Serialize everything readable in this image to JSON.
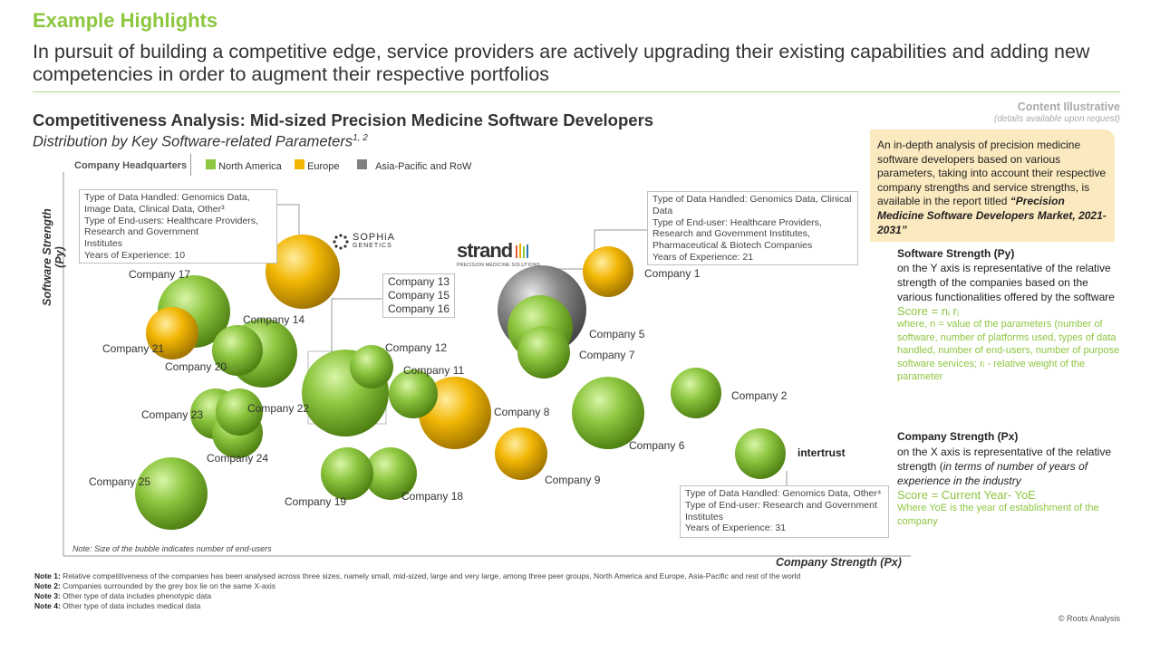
{
  "header": {
    "title": "Example Highlights",
    "headline": "In pursuit of building a competitive edge, service providers are actively upgrading their existing capabilities and adding new competencies in order to augment their respective portfolios"
  },
  "content_illustrative": {
    "label": "Content Illustrative",
    "sub": "(details available upon request)"
  },
  "callout": {
    "text": "An in-depth analysis of precision medicine software developers based on various parameters, taking into account their respective company strengths and service strengths, is available in the report titled",
    "report_title": "“Precision Medicine Software Developers Market, 2021-2031”"
  },
  "legend": {
    "title": "Company Headquarters",
    "items": [
      {
        "label": "North America",
        "color": "#8dc63f"
      },
      {
        "label": "Europe",
        "color": "#f2b705"
      },
      {
        "label": "Asia-Pacific and RoW",
        "color": "#808080"
      }
    ]
  },
  "chart_data": {
    "type": "scatter",
    "title": "Competitiveness Analysis: Mid-sized Precision Medicine Software Developers",
    "subtitle": "Distribution by Key Software-related Parameters",
    "subtitle_sup": "1, 2",
    "xlabel": "Company Strength (Px)",
    "ylabel": "Software Strength (Py)",
    "note": "Note: Size of the bubble indicates number of end-users",
    "series": [
      {
        "name": "North America",
        "color": "#8dc63f",
        "points": [
          {
            "label": "Company 2",
            "x": 768,
            "y": 434,
            "size": 28
          },
          {
            "label": "Company 5",
            "x": 596,
            "y": 362,
            "size": 36
          },
          {
            "label": "Company 6",
            "x": 671,
            "y": 456,
            "size": 40
          },
          {
            "label": "Company 7",
            "x": 600,
            "y": 389,
            "size": 29
          },
          {
            "label": "Company 11",
            "x": 456,
            "y": 435,
            "size": 27
          },
          {
            "label": "Company 12",
            "x": 410,
            "y": 405,
            "size": 24
          },
          {
            "label": "Company 13",
            "x": 381,
            "y": 434,
            "size": 48
          },
          {
            "label": "Company 14",
            "x": 290,
            "y": 390,
            "size": 38
          },
          {
            "label": "Company 17",
            "x": 214,
            "y": 344,
            "size": 40
          },
          {
            "label": "Company 18",
            "x": 431,
            "y": 523,
            "size": 29
          },
          {
            "label": "Company 19",
            "x": 383,
            "y": 523,
            "size": 29
          },
          {
            "label": "Company 20",
            "x": 262,
            "y": 387,
            "size": 28
          },
          {
            "label": "Company 22",
            "x": 264,
            "y": 455,
            "size": 26
          },
          {
            "label": "Company 23",
            "x": 238,
            "y": 457,
            "size": 28
          },
          {
            "label": "Company 24",
            "x": 262,
            "y": 478,
            "size": 28
          },
          {
            "label": "Company 25",
            "x": 189,
            "y": 545,
            "size": 40
          },
          {
            "label": "Intertrust",
            "x": 839,
            "y": 501,
            "size": 28
          }
        ]
      },
      {
        "name": "Europe",
        "color": "#f2b705",
        "points": [
          {
            "label": "Company 1",
            "x": 671,
            "y": 300,
            "size": 28
          },
          {
            "label": "Company 8",
            "x": 502,
            "y": 456,
            "size": 40
          },
          {
            "label": "Company 9",
            "x": 575,
            "y": 501,
            "size": 29
          },
          {
            "label": "Company 21",
            "x": 190,
            "y": 368,
            "size": 29
          },
          {
            "label": "SOPHiA GENETICS",
            "x": 334,
            "y": 300,
            "size": 41
          }
        ]
      },
      {
        "name": "Asia-Pacific and RoW",
        "color": "#808080",
        "points": [
          {
            "label": "Strand",
            "x": 598,
            "y": 342,
            "size": 49
          }
        ]
      }
    ]
  },
  "bubble_labels": {
    "c1": "Company 1",
    "c2": "Company 2",
    "c5": "Company 5",
    "c6": "Company 6",
    "c7": "Company 7",
    "c8": "Company 8",
    "c9": "Company 9",
    "c11": "Company 11",
    "c12": "Company 12",
    "c14": "Company 14",
    "c17": "Company 17",
    "c18": "Company 18",
    "c19": "Company 19",
    "c20": "Company 20",
    "c21": "Company 21",
    "c22": "Company 22",
    "c23": "Company 23",
    "c24": "Company 24",
    "c25": "Company 25"
  },
  "group_box": [
    "Company 13",
    "Company 15",
    "Company 16"
  ],
  "infoboxes": {
    "sophia": [
      "Type of Data Handled: Genomics Data,",
      "Image Data, Clinical Data, Other³",
      "Type of End-users: Healthcare Providers,",
      "Research and Government",
      "Institutes",
      "Years of Experience: 10"
    ],
    "strand": [
      "Type of Data Handled: Genomics Data, Clinical",
      "Data",
      "Type of End-user: Healthcare Providers,",
      "Research and Government Institutes,",
      "Pharmaceutical & Biotech Companies",
      "Years of Experience: 21"
    ],
    "intertrust": [
      "Type of Data Handled: Genomics Data, Other⁴",
      "Type of End-user: Research and Government",
      "Institutes",
      "Years of Experience: 31"
    ]
  },
  "logos": {
    "sophia_line1": "SOPHiA",
    "sophia_line2": "GENETICS",
    "strand": "strand",
    "strand_tag": "PRECISION MEDICINE SOLUTIONS",
    "intertrust": "intertrust"
  },
  "sidebar": {
    "software_heading": "Software Strength (Py)",
    "software_text": "on the Y axis is representative of the relative strength of the companies based on the various functionalities offered by the software",
    "software_score": "Score = nᵢ rᵢ",
    "software_where": "where, n = value of the parameters (number of software, number of platforms used, types of data handled, number of end-users, number of purpose software services; rᵢ - relative weight of the parameter",
    "company_heading": "Company Strength (Px)",
    "company_text1": "on the X axis is representative of the relative strength (",
    "company_text_italic": "in terms of number of years of experience in the industry",
    "company_score": "Score = Current Year- YoE",
    "company_where": "Where YoE is the year of establishment of the company"
  },
  "notes": [
    {
      "label": "Note 1:",
      "text": " Relative competitiveness of the companies has been analysed across three sizes, namely small, mid-sized, large and very large, among three peer groups, North America and Europe, Asia-Pacific and rest of the world"
    },
    {
      "label": "Note 2:",
      "text": " Companies surrounded by the grey box lie on the same X-axis"
    },
    {
      "label": "Note 3:",
      "text": " Other type of data includes phenotypic data"
    },
    {
      "label": "Note 4:",
      "text": " Other type of data includes medical data"
    }
  ],
  "copyright": "© Roots Analysis"
}
